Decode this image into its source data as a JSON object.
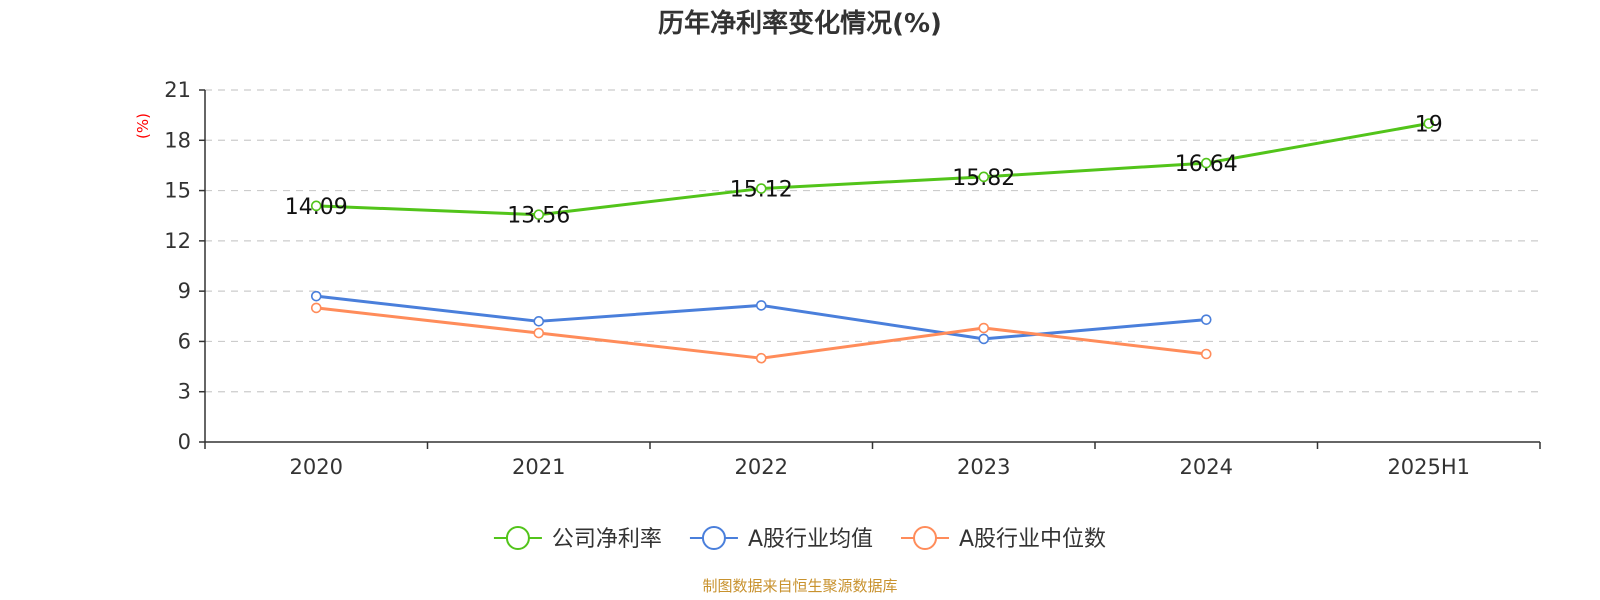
{
  "chart_data": {
    "type": "line",
    "title": "历年净利率变化情况(%)",
    "ylabel": "(%)",
    "xlabel": "",
    "categories": [
      "2020",
      "2021",
      "2022",
      "2023",
      "2024",
      "2025H1"
    ],
    "ylim": [
      0,
      21
    ],
    "yticks": [
      0,
      3,
      6,
      9,
      12,
      15,
      18,
      21
    ],
    "grid": true,
    "legend_position": "bottom-center",
    "series": [
      {
        "name": "公司净利率",
        "color": "#52c41a",
        "values": [
          14.09,
          13.56,
          15.12,
          15.82,
          16.64,
          19
        ],
        "labels": [
          "14.09",
          "13.56",
          "15.12",
          "15.82",
          "16.64",
          "19"
        ]
      },
      {
        "name": "A股行业均值",
        "color": "#4a7fdb",
        "values": [
          8.7,
          7.2,
          8.15,
          6.15,
          7.3,
          null
        ]
      },
      {
        "name": "A股行业中位数",
        "color": "#ff8c5a",
        "values": [
          8.0,
          6.5,
          5.0,
          6.8,
          5.25,
          null
        ]
      }
    ]
  },
  "source": "制图数据来自恒生聚源数据库"
}
